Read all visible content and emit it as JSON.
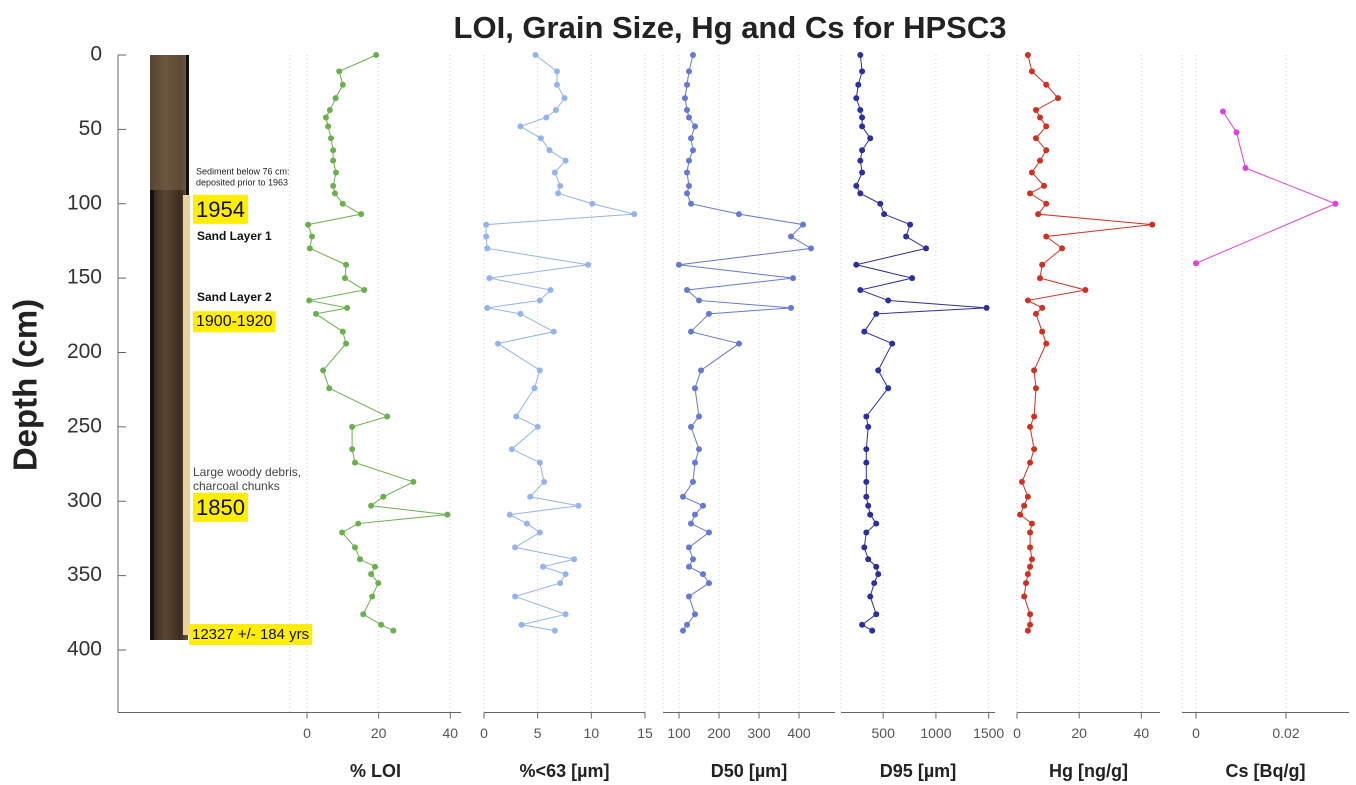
{
  "figure": {
    "title": "LOI, Grain Size, Hg and Cs for HPSC3",
    "ylabel": "Depth (cm)",
    "ylim": [
      0,
      442
    ],
    "yticks": [
      0,
      50,
      100,
      150,
      200,
      250,
      300,
      350,
      400
    ]
  },
  "annotations": [
    {
      "lines": [
        "Sediment below 76 cm:",
        "deposited prior to 1963"
      ],
      "highlight": false
    },
    {
      "lines": [
        "1954"
      ],
      "highlight": true
    },
    {
      "lines": [
        "Sand Layer 1"
      ],
      "highlight": false
    },
    {
      "lines": [
        "Sand Layer 2"
      ],
      "highlight": false
    },
    {
      "lines": [
        "1900-1920"
      ],
      "highlight": true
    },
    {
      "lines": [
        "Large woody debris,",
        "charcoal chunks"
      ],
      "highlight": false
    },
    {
      "lines": [
        "1850"
      ],
      "highlight": true
    },
    {
      "lines": [
        "12327 +/- 184 yrs"
      ],
      "highlight": true
    }
  ],
  "chart_data": [
    {
      "type": "line",
      "xlabel": "% LOI",
      "color": "#6ab04c",
      "xlim": [
        0,
        43
      ],
      "xticks": [
        0,
        20,
        40
      ],
      "depths": [
        0,
        11,
        20,
        29,
        37,
        42,
        48,
        56,
        64,
        71,
        79,
        88,
        93,
        100,
        107,
        114,
        122,
        130,
        141,
        150,
        158,
        165,
        170,
        174,
        186,
        194,
        212,
        224,
        243,
        250,
        265,
        274,
        287,
        297,
        303,
        309,
        315,
        321,
        331,
        339,
        344,
        349,
        355,
        364,
        376,
        383,
        387
      ],
      "values": [
        19.3,
        9,
        10,
        8,
        6.4,
        5.3,
        5.9,
        6.7,
        7.3,
        7.3,
        8.1,
        7.3,
        7.8,
        10,
        15.1,
        0.3,
        1.4,
        0.8,
        10.9,
        10.6,
        16,
        0.6,
        11.2,
        2.5,
        10,
        10.9,
        4.5,
        6.2,
        22.4,
        12.6,
        12.6,
        13.4,
        29.7,
        21.3,
        17.9,
        39.2,
        14.3,
        9.8,
        13.4,
        14.8,
        19,
        17.9,
        19.9,
        18.2,
        15.7,
        20.7,
        24.1
      ]
    },
    {
      "type": "line",
      "xlabel": "%<63 [µm]",
      "color": "#94b4ee",
      "xlim": [
        0,
        15
      ],
      "xticks": [
        0,
        5,
        10,
        15
      ],
      "depths": [
        0,
        11,
        20,
        29,
        37,
        42,
        48,
        56,
        64,
        71,
        79,
        88,
        93,
        100,
        107,
        114,
        122,
        130,
        141,
        150,
        158,
        165,
        170,
        174,
        186,
        194,
        212,
        224,
        243,
        250,
        265,
        274,
        287,
        297,
        303,
        309,
        315,
        321,
        331,
        339,
        344,
        349,
        355,
        364,
        376,
        383,
        387
      ],
      "values": [
        4.8,
        6.8,
        6.8,
        7.5,
        6.7,
        5.8,
        3.4,
        5.3,
        6.1,
        7.6,
        6.6,
        7.1,
        6.9,
        10.1,
        14,
        0.2,
        0.2,
        0.3,
        9.7,
        0.5,
        6.2,
        5.2,
        0.3,
        3.4,
        6.5,
        1.3,
        5.2,
        4.7,
        3,
        5,
        2.6,
        5.2,
        5.6,
        4.3,
        8.8,
        2.4,
        4,
        5.2,
        2.9,
        8.4,
        5.5,
        7.6,
        7.1,
        2.9,
        7.6,
        3.5,
        6.6
      ]
    },
    {
      "type": "line",
      "xlabel": "D50 [µm]",
      "color": "#6478d6",
      "xlim": [
        60,
        490
      ],
      "xticks": [
        100,
        200,
        300,
        400
      ],
      "depths": [
        0,
        11,
        20,
        29,
        37,
        42,
        48,
        56,
        64,
        71,
        79,
        88,
        93,
        100,
        107,
        114,
        122,
        130,
        141,
        150,
        158,
        165,
        170,
        174,
        186,
        194,
        212,
        224,
        243,
        250,
        265,
        274,
        287,
        297,
        303,
        309,
        315,
        321,
        331,
        339,
        344,
        349,
        355,
        364,
        376,
        383,
        387
      ],
      "values": [
        135,
        125,
        120,
        115,
        120,
        125,
        140,
        130,
        135,
        125,
        120,
        125,
        120,
        130,
        250,
        410,
        380,
        430,
        100,
        385,
        120,
        150,
        380,
        175,
        130,
        250,
        155,
        140,
        150,
        130,
        150,
        140,
        135,
        110,
        160,
        140,
        130,
        175,
        125,
        135,
        125,
        160,
        175,
        125,
        140,
        120,
        110
      ]
    },
    {
      "type": "line",
      "xlabel": "D95 [µm]",
      "color": "#2c2f9e",
      "xlim": [
        100,
        1560
      ],
      "xticks": [
        500,
        1000,
        1500
      ],
      "depths": [
        0,
        11,
        20,
        29,
        37,
        42,
        48,
        56,
        64,
        71,
        79,
        88,
        93,
        100,
        107,
        114,
        122,
        130,
        141,
        150,
        158,
        165,
        170,
        174,
        186,
        194,
        212,
        224,
        243,
        250,
        265,
        274,
        287,
        297,
        303,
        309,
        315,
        321,
        331,
        339,
        344,
        349,
        355,
        364,
        376,
        383,
        387
      ],
      "values": [
        283,
        300,
        264,
        245,
        283,
        300,
        300,
        377,
        300,
        283,
        300,
        245,
        283,
        472,
        509,
        755,
        717,
        906,
        245,
        774,
        283,
        547,
        1480,
        434,
        321,
        585,
        453,
        547,
        340,
        358,
        340,
        340,
        340,
        340,
        358,
        377,
        434,
        340,
        321,
        358,
        434,
        453,
        415,
        377,
        434,
        300,
        396
      ]
    },
    {
      "type": "line",
      "xlabel": "Hg [ng/g]",
      "color": "#d03020",
      "xlim": [
        0,
        46
      ],
      "xticks": [
        0,
        20,
        40
      ],
      "depths": [
        0,
        11,
        20,
        29,
        37,
        42,
        48,
        56,
        64,
        71,
        79,
        88,
        93,
        100,
        107,
        114,
        122,
        130,
        141,
        150,
        158,
        165,
        170,
        174,
        186,
        194,
        212,
        224,
        243,
        250,
        265,
        274,
        287,
        297,
        303,
        309,
        315,
        321,
        331,
        339,
        344,
        349,
        355,
        364,
        376,
        383,
        387
      ],
      "values": [
        3.5,
        4.8,
        9.4,
        13.2,
        6.1,
        7.4,
        9.4,
        6.1,
        9.4,
        7.4,
        4.8,
        8.7,
        4.2,
        9.4,
        6.8,
        43.5,
        9.4,
        14.5,
        8.1,
        7.4,
        22,
        3.5,
        8.1,
        6.1,
        8.1,
        9.4,
        5.5,
        6.1,
        5.5,
        4.2,
        5.5,
        4.2,
        1.6,
        3.5,
        2.3,
        1,
        4.8,
        4.2,
        4.2,
        4.8,
        4.2,
        3.5,
        2.9,
        2.3,
        4.2,
        4.2,
        3.5
      ]
    },
    {
      "type": "line",
      "xlabel": "Cs [Bq/g]",
      "color": "#e040e0",
      "xlim": [
        0,
        0.034
      ],
      "xticks": [
        0,
        0.02
      ],
      "depths": [
        38,
        52,
        76,
        100,
        140
      ],
      "values": [
        0.006,
        0.009,
        0.011,
        0.031,
        0
      ]
    }
  ]
}
